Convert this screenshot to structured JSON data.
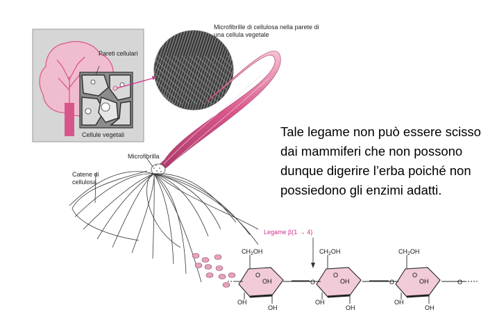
{
  "labels": {
    "microfibrils_caption": "Microfibrille di cellulosa nella parete di una cellula vegetale",
    "cell_walls": "Pareti cellulari",
    "plant_cells": "Cellule vegetali",
    "microfibril": "Microfibrilla",
    "cellulose_chains": "Catene di cellulosa",
    "bond_label": "Legame β(1 → 4)"
  },
  "chemistry": {
    "ch2oh": "CH2OH",
    "oh": "OH",
    "o": "O"
  },
  "main_text": "Tale legame non può essere scisso dai mammiferi che non possono dunque digerire l’erba poiché non possiedono gli enzimi adatti.",
  "colors": {
    "pink": "#d7568a",
    "pink_light": "#f2cbd8",
    "panel_gray": "#d6d6d6",
    "bond_magenta": "#d0318a"
  }
}
